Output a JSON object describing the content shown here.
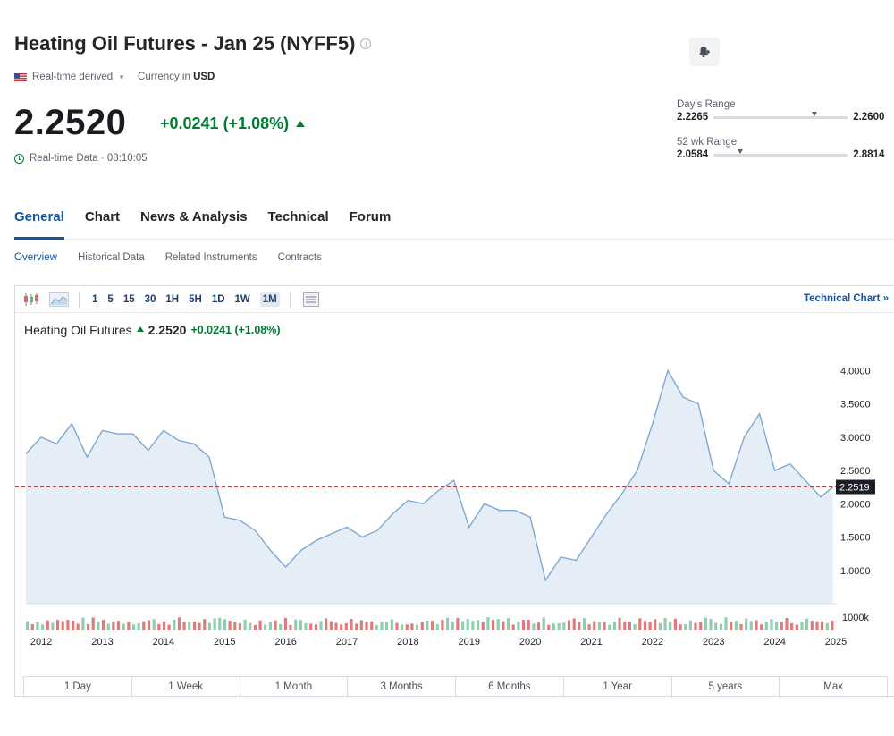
{
  "header": {
    "title": "Heating Oil Futures - Jan 25 (NYFF5)",
    "source": "Real-time derived",
    "currency_label": "Currency in",
    "currency": "USD",
    "price": "2.2520",
    "change": "+0.0241 (+1.08%)",
    "realtime_label": "Real-time Data · 08:10:05"
  },
  "ranges": {
    "day": {
      "label": "Day's Range",
      "low": "2.2265",
      "high": "2.2600",
      "marker": 0.75
    },
    "week52": {
      "label": "52 wk Range",
      "low": "2.0584",
      "high": "2.8814",
      "marker": 0.2
    }
  },
  "tabs": [
    "General",
    "Chart",
    "News & Analysis",
    "Technical",
    "Forum"
  ],
  "subtabs": [
    "Overview",
    "Historical Data",
    "Related Instruments",
    "Contracts"
  ],
  "toolbar": {
    "intervals": [
      "1",
      "5",
      "15",
      "30",
      "1H",
      "5H",
      "1D",
      "1W",
      "1M"
    ],
    "selected": "1M",
    "technical_link": "Technical Chart »"
  },
  "chart_header": {
    "name": "Heating Oil Futures",
    "price": "2.2520",
    "change": "+0.0241 (+1.08%)"
  },
  "periods": [
    "1 Day",
    "1 Week",
    "1 Month",
    "3 Months",
    "6 Months",
    "1 Year",
    "5 years",
    "Max"
  ],
  "chart_data": {
    "type": "area",
    "x": [
      2011.75,
      2012.0,
      2012.25,
      2012.5,
      2012.75,
      2013.0,
      2013.25,
      2013.5,
      2013.75,
      2014.0,
      2014.25,
      2014.5,
      2014.75,
      2015.0,
      2015.25,
      2015.5,
      2015.75,
      2016.0,
      2016.25,
      2016.5,
      2016.75,
      2017.0,
      2017.25,
      2017.5,
      2017.75,
      2018.0,
      2018.25,
      2018.5,
      2018.75,
      2019.0,
      2019.25,
      2019.5,
      2019.75,
      2020.0,
      2020.25,
      2020.5,
      2020.75,
      2021.0,
      2021.25,
      2021.5,
      2021.75,
      2022.0,
      2022.25,
      2022.5,
      2022.75,
      2023.0,
      2023.25,
      2023.5,
      2023.75,
      2024.0,
      2024.25,
      2024.5,
      2024.75,
      2024.95
    ],
    "values": [
      2.75,
      3.0,
      2.9,
      3.2,
      2.7,
      3.1,
      3.05,
      3.05,
      2.8,
      3.1,
      2.95,
      2.9,
      2.7,
      1.8,
      1.75,
      1.6,
      1.3,
      1.05,
      1.3,
      1.45,
      1.55,
      1.65,
      1.5,
      1.6,
      1.85,
      2.05,
      2.0,
      2.2,
      2.35,
      1.65,
      2.0,
      1.9,
      1.9,
      1.8,
      0.85,
      1.2,
      1.15,
      1.5,
      1.85,
      2.15,
      2.5,
      3.2,
      4.0,
      3.6,
      3.5,
      2.5,
      2.3,
      3.0,
      3.35,
      2.5,
      2.6,
      2.35,
      2.1,
      2.25
    ],
    "x_ticks": [
      "2012",
      "2013",
      "2014",
      "2015",
      "2016",
      "2017",
      "2018",
      "2019",
      "2020",
      "2021",
      "2022",
      "2023",
      "2024",
      "2025"
    ],
    "y_ticks": [
      "4.0000",
      "3.5000",
      "3.0000",
      "2.5000",
      "2.0000",
      "1.5000",
      "1.0000"
    ],
    "ylim": [
      0.5,
      4.3
    ],
    "current_value": 2.2519,
    "current_label": "2.2519",
    "volume_label": "1000k",
    "colors": {
      "line": "#7fa8d1",
      "fill": "#e5eef7",
      "up": "#8fcfb0",
      "down": "#e07b7b",
      "ref": "#b34040"
    }
  }
}
